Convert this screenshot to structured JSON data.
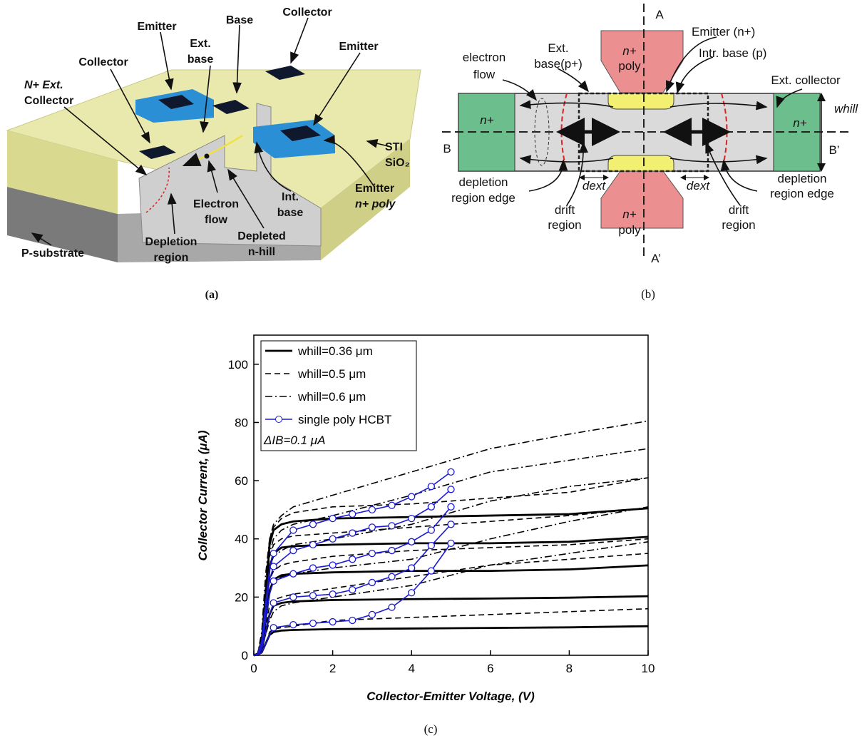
{
  "panel_a": {
    "emitter_left": "Emitter",
    "base": "Base",
    "collector_top": "Collector",
    "collector_left": "Collector",
    "ext_base": [
      "Ext.",
      "base"
    ],
    "emitter_right": "Emitter",
    "n_ext_collector": [
      "N+ Ext.",
      "Collector"
    ],
    "sti": [
      "STI",
      "SiO₂"
    ],
    "emitter_poly": [
      "Emitter",
      "n+ poly"
    ],
    "electron_flow": [
      "Electron",
      "flow"
    ],
    "int_base": [
      "Int.",
      "base"
    ],
    "depletion_region": [
      "Depletion",
      "region"
    ],
    "depleted_n_hill": [
      "Depleted",
      "n-hill"
    ],
    "p_substrate": "P-substrate",
    "caption": "(a)"
  },
  "panel_b": {
    "a": "A",
    "a_prime": "A’",
    "b": "B",
    "b_prime": "B’",
    "poly_top": [
      "n+",
      "poly"
    ],
    "poly_bottom": [
      "n+",
      "poly"
    ],
    "emitter": "Emitter (n+)",
    "intr_base": "Intr. base (p)",
    "ext_base": [
      "Ext.",
      "base(p+)"
    ],
    "electron_flow": [
      "electron",
      "flow"
    ],
    "ext_collector": "Ext. collector",
    "w_hill": "whill",
    "n_left": "n+",
    "n_right": "n+",
    "depletion_left": [
      "depletion",
      "region edge"
    ],
    "depletion_right": [
      "depletion",
      "region edge"
    ],
    "d_ext_left": "dext",
    "d_ext_right": "dext",
    "drift_left": [
      "drift",
      "region"
    ],
    "drift_right": [
      "drift",
      "region"
    ],
    "caption": "(b)"
  },
  "caption_c": "(c)",
  "chart_data": {
    "type": "line",
    "x_label": "Collector-Emitter Voltage, (V)",
    "y_label": "Collector Current, (μA)",
    "xlim": [
      0,
      10
    ],
    "ylim": [
      0,
      110
    ],
    "xticks": [
      0,
      2,
      4,
      6,
      8,
      10
    ],
    "yticks": [
      0,
      20,
      40,
      60,
      80,
      100
    ],
    "legend": "upper-left",
    "annotation": "ΔIB=0.1 μA",
    "series": [
      {
        "name": "whill=0.36 μm",
        "color": "#000000",
        "style": "solid",
        "x": [
          0,
          0.1,
          0.2,
          0.3,
          0.4,
          0.5,
          0.7,
          1,
          2,
          4,
          6,
          8,
          10
        ],
        "values": [
          [
            0,
            0.3,
            1,
            4,
            7,
            8,
            8.5,
            8.7,
            9,
            9.2,
            9.4,
            9.6,
            10
          ],
          [
            0,
            0.4,
            2,
            8,
            14,
            17,
            18,
            18.5,
            19,
            19.3,
            19.5,
            19.8,
            20.3
          ],
          [
            0,
            0.5,
            3,
            12,
            22,
            26,
            27.5,
            28,
            28.5,
            29,
            29,
            29.5,
            30.9
          ],
          [
            0,
            0.5,
            4,
            16,
            30,
            35,
            37,
            37.5,
            38,
            38.5,
            38.5,
            39,
            40.7
          ],
          [
            0,
            0.5,
            5,
            20,
            38,
            43,
            45,
            46,
            47,
            47.5,
            48,
            48.5,
            50.5
          ]
        ]
      },
      {
        "name": "whill=0.5 μm",
        "color": "#000000",
        "style": "dashed",
        "x": [
          0,
          0.1,
          0.2,
          0.3,
          0.4,
          0.5,
          0.7,
          1,
          2,
          4,
          6,
          8,
          10
        ],
        "values": [
          [
            0,
            0.3,
            1,
            4,
            8,
            9,
            9.5,
            10,
            12,
            13,
            14,
            15,
            16
          ],
          [
            0,
            0.4,
            3,
            10,
            17,
            19,
            20,
            21,
            23,
            27,
            31,
            33,
            35
          ],
          [
            0,
            0.4,
            4,
            15,
            26,
            29,
            31,
            32,
            34,
            36,
            37,
            38,
            40
          ],
          [
            0,
            0.5,
            5,
            20,
            34,
            38,
            40,
            41,
            42,
            44,
            46,
            48,
            50.5
          ],
          [
            0,
            0.5,
            6,
            24,
            40,
            44,
            47,
            49,
            51,
            52,
            54,
            56,
            61
          ]
        ]
      },
      {
        "name": "whill=0.6 μm",
        "color": "#000000",
        "style": "dashdot",
        "x": [
          0,
          0.1,
          0.2,
          0.3,
          0.4,
          0.5,
          0.7,
          1,
          2,
          4,
          6,
          8,
          10
        ],
        "values": [
          [
            0,
            0.3,
            2,
            7,
            12,
            15,
            17,
            18,
            20,
            24,
            31,
            35,
            39
          ],
          [
            0,
            0.4,
            4,
            14,
            22,
            25,
            27,
            28,
            30,
            33,
            40,
            46,
            51
          ],
          [
            0,
            0.5,
            6,
            20,
            30,
            34,
            36,
            38,
            40,
            45,
            53,
            58,
            61
          ],
          [
            0,
            0.5,
            7,
            24,
            35,
            40,
            43,
            45,
            48,
            55,
            63,
            67,
            71
          ],
          [
            0,
            0.6,
            8,
            28,
            40,
            45,
            48,
            51,
            55,
            63,
            71,
            76,
            80.5
          ]
        ]
      },
      {
        "name": "single poly HCBT",
        "color": "#1a1ad6",
        "style": "solid",
        "marker": "circle",
        "x": [
          0,
          0.1,
          0.2,
          0.3,
          0.4,
          0.5,
          1,
          1.5,
          2,
          2.5,
          3,
          3.5,
          4,
          4.5,
          5
        ],
        "values": [
          [
            0,
            0.2,
            1,
            4,
            7,
            9.5,
            10.5,
            11,
            11.5,
            12,
            14,
            16.5,
            21.5,
            29,
            38.5
          ],
          [
            0,
            0.3,
            2,
            8,
            14,
            18,
            20,
            20.5,
            21,
            22.5,
            25,
            27,
            30,
            37.7,
            45
          ],
          [
            0,
            0.4,
            3,
            12,
            21,
            25.5,
            28,
            30,
            31,
            33,
            35,
            36,
            39,
            43,
            51
          ],
          [
            0,
            0.5,
            4,
            15,
            26,
            30.5,
            36,
            38,
            40,
            42,
            44,
            44.5,
            47,
            51,
            57
          ],
          [
            0,
            0.5,
            5,
            18,
            30,
            35,
            43,
            45,
            47,
            48.5,
            50,
            51.5,
            54.5,
            58,
            63
          ]
        ]
      }
    ]
  }
}
